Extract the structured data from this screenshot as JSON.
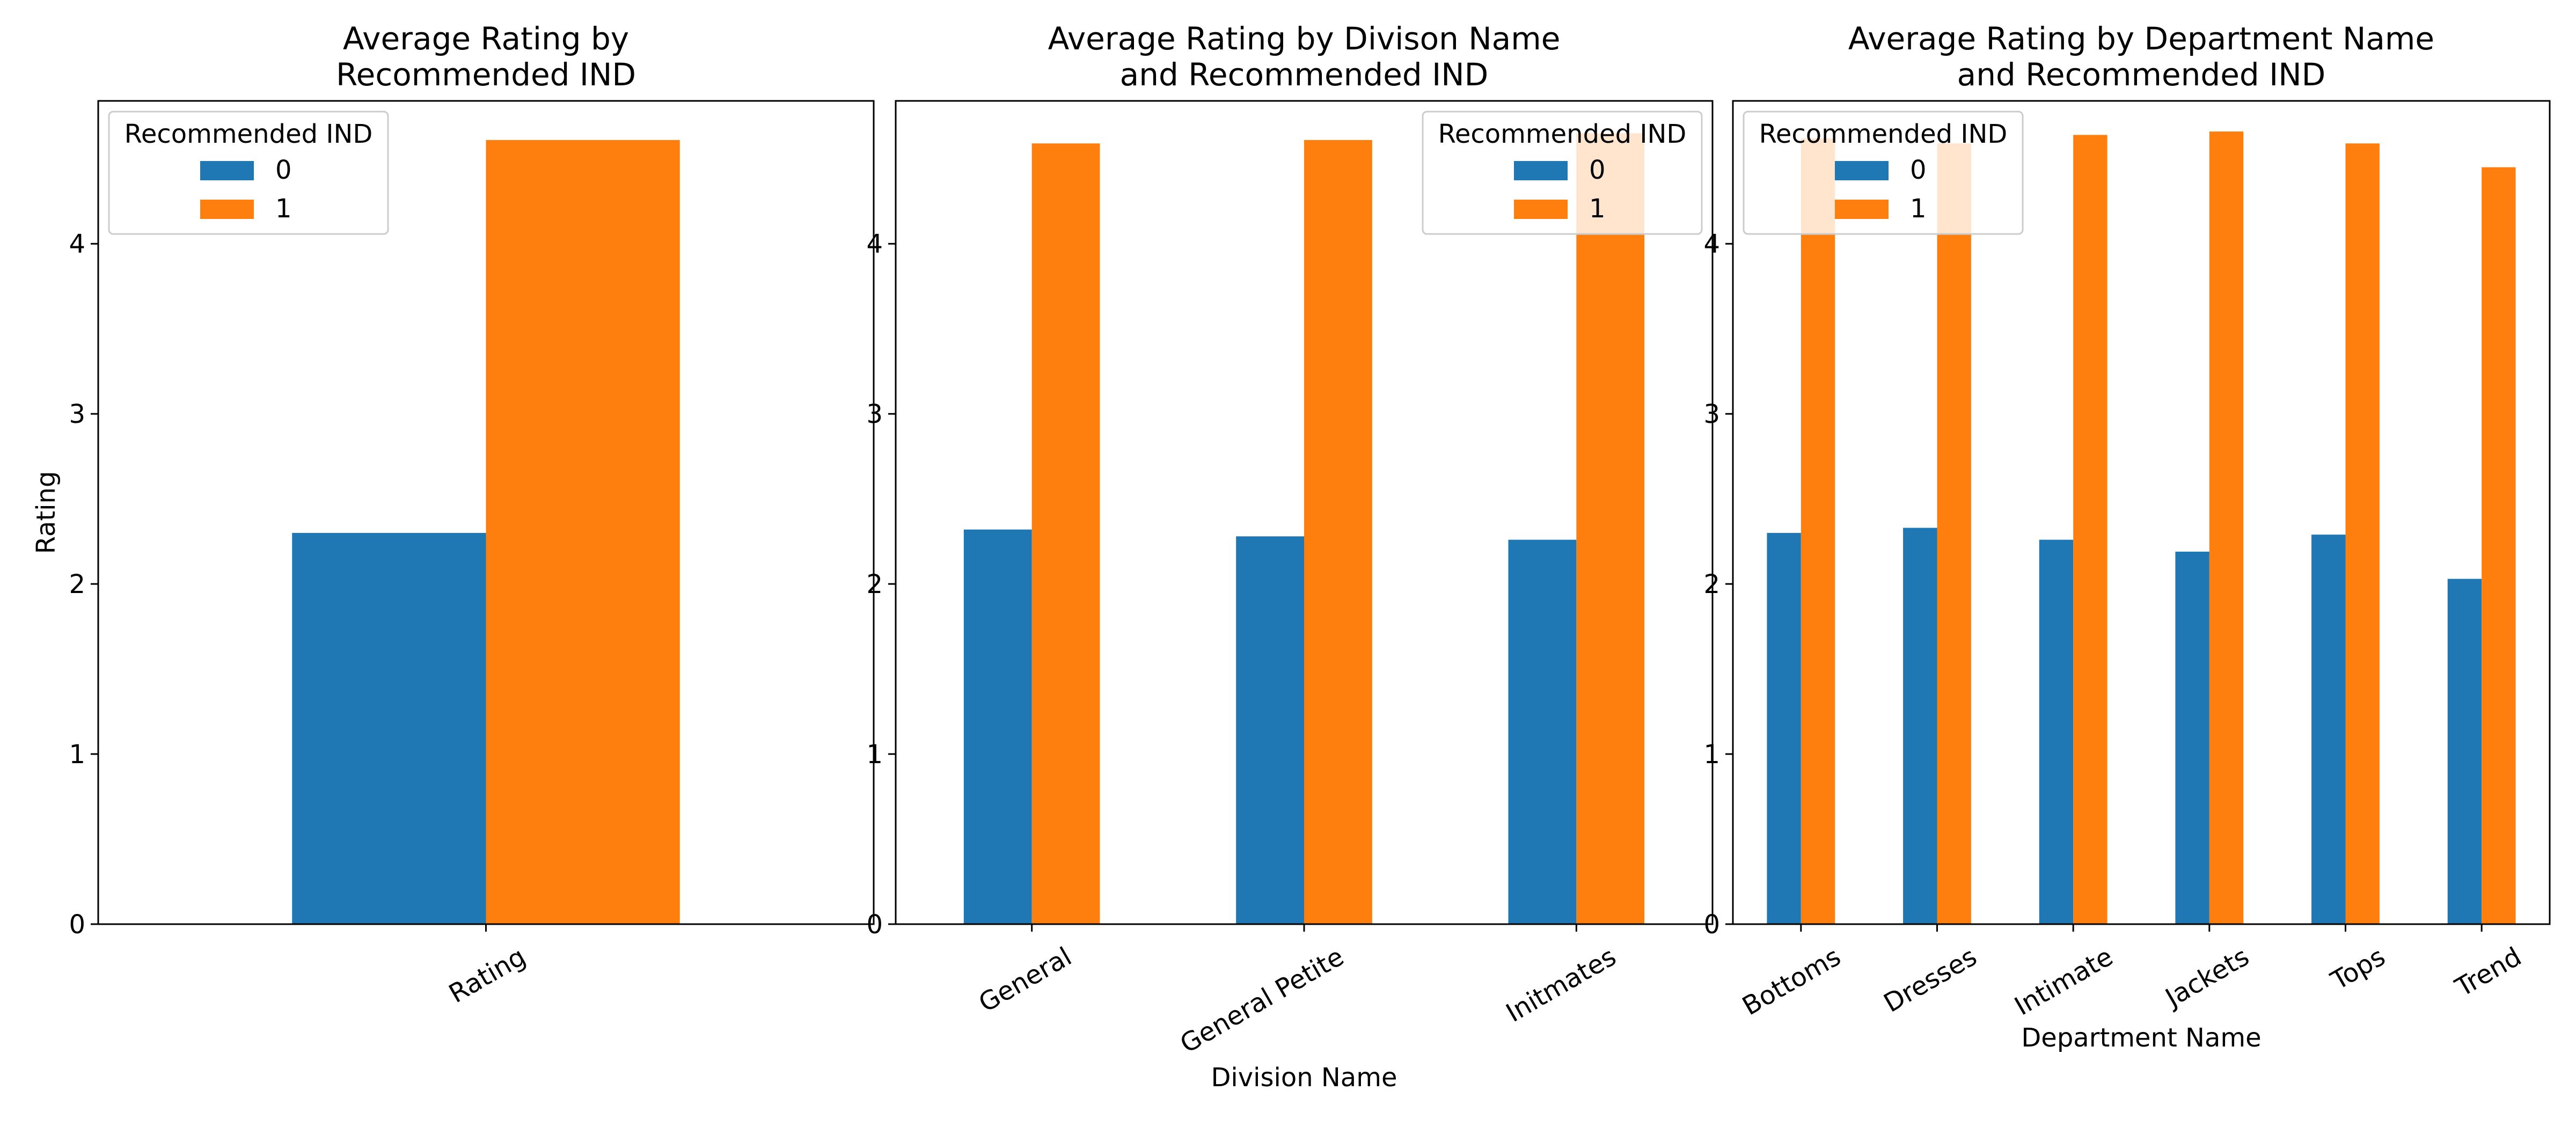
{
  "colors": {
    "series0": "#1f77b4",
    "series1": "#ff7f0e"
  },
  "chart_data": [
    {
      "type": "bar",
      "title": "Average Rating by\nRecommended IND",
      "xlabel": "",
      "ylabel": "Rating",
      "categories": [
        "Rating"
      ],
      "series": [
        {
          "name": "0",
          "values": [
            2.3
          ]
        },
        {
          "name": "1",
          "values": [
            4.61
          ]
        }
      ],
      "ylim": [
        0,
        4.84
      ],
      "yticks": [
        "0",
        "1",
        "2",
        "3",
        "4"
      ],
      "legend": {
        "title": "Recommended IND",
        "placement": "upper-left"
      },
      "grid": false
    },
    {
      "type": "bar",
      "title": "Average Rating by Divison Name\nand Recommended IND",
      "xlabel": "Division Name",
      "ylabel": "",
      "categories": [
        "General",
        "General Petite",
        "Initmates"
      ],
      "series": [
        {
          "name": "0",
          "values": [
            2.32,
            2.28,
            2.26
          ]
        },
        {
          "name": "1",
          "values": [
            4.59,
            4.61,
            4.65
          ]
        }
      ],
      "ylim": [
        0,
        4.84
      ],
      "yticks": [
        "0",
        "1",
        "2",
        "3",
        "4"
      ],
      "legend": {
        "title": "Recommended IND",
        "placement": "upper-right"
      },
      "grid": false
    },
    {
      "type": "bar",
      "title": "Average Rating by Department Name\nand Recommended IND",
      "xlabel": "Department Name",
      "ylabel": "",
      "categories": [
        "Bottoms",
        "Dresses",
        "Intimate",
        "Jackets",
        "Tops",
        "Trend"
      ],
      "series": [
        {
          "name": "0",
          "values": [
            2.3,
            2.33,
            2.26,
            2.19,
            2.29,
            2.03
          ]
        },
        {
          "name": "1",
          "values": [
            4.62,
            4.59,
            4.64,
            4.66,
            4.59,
            4.45
          ]
        }
      ],
      "ylim": [
        0,
        4.84
      ],
      "yticks": [
        "0",
        "1",
        "2",
        "3",
        "4"
      ],
      "legend": {
        "title": "Recommended IND",
        "placement": "upper-left"
      },
      "grid": false
    }
  ]
}
